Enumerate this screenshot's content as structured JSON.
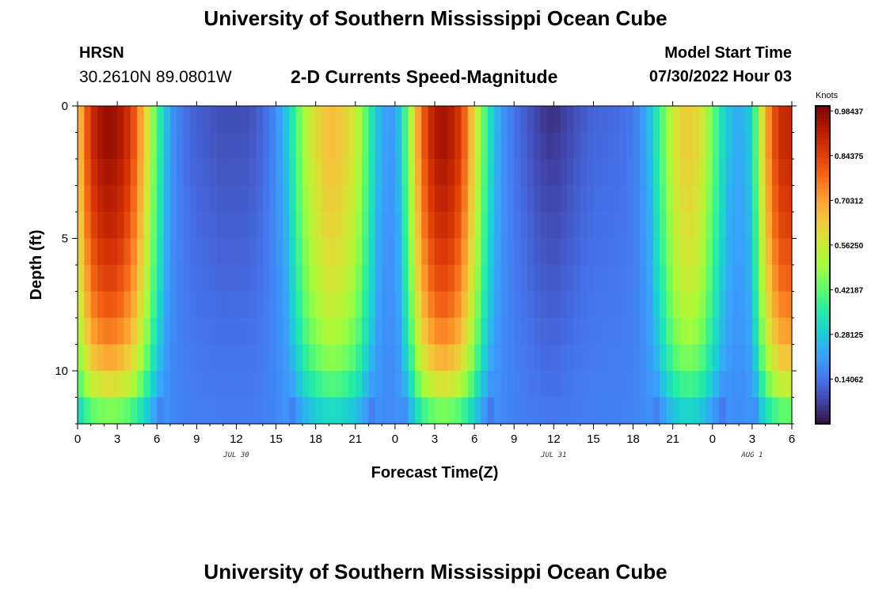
{
  "header": {
    "title": "University of Southern Mississippi Ocean Cube",
    "station": "HRSN",
    "coordinates": "30.2610N  89.0801W",
    "subtitle": "2-D Currents Speed-Magnitude",
    "model_start_label": "Model Start Time",
    "model_start_value": "07/30/2022 Hour 03"
  },
  "footer": {
    "title": "University of Southern Mississippi Ocean Cube"
  },
  "chart_data": {
    "type": "heatmap",
    "title": "2-D Currents Speed-Magnitude",
    "xlabel": "Forecast Time(Z)",
    "ylabel": "Depth (ft)",
    "x_ticks": [
      "0",
      "3",
      "6",
      "9",
      "12",
      "15",
      "18",
      "21",
      "0",
      "3",
      "6",
      "9",
      "12",
      "15",
      "18",
      "21",
      "0",
      "3",
      "6"
    ],
    "y_ticks": [
      "0",
      "5",
      "10"
    ],
    "y_tick_values": [
      0,
      5,
      10
    ],
    "ylim": [
      0,
      12
    ],
    "x_range_hours": [
      0,
      54
    ],
    "date_labels": [
      {
        "label": "JUL 30",
        "hour": 12
      },
      {
        "label": "JUL 31",
        "hour": 36
      },
      {
        "label": "AUG 1",
        "hour": 51
      }
    ],
    "colorbar": {
      "unit": "Knots",
      "ticks": [
        "0.98437",
        "0.84375",
        "0.70312",
        "0.56250",
        "0.42187",
        "0.28125",
        "0.14062"
      ],
      "tick_values": [
        0.98437,
        0.84375,
        0.70312,
        0.5625,
        0.42187,
        0.28125,
        0.14062
      ],
      "range": [
        0.0,
        1.0
      ]
    },
    "colors": {
      "scale": [
        "#30123b",
        "#4145ab",
        "#4675ed",
        "#39a2fc",
        "#1bcfd4",
        "#24eca6",
        "#61fc6c",
        "#a4fc3b",
        "#d1e834",
        "#f3c63a",
        "#fe9b2d",
        "#f36315",
        "#d93806",
        "#b11901",
        "#7a0402"
      ]
    },
    "depth_rows": 12,
    "depth_profile": [
      1.0,
      1.0,
      0.98,
      0.96,
      0.94,
      0.91,
      0.88,
      0.84,
      0.79,
      0.72,
      0.62,
      0.48
    ],
    "time_knots": [
      [
        0,
        0.62
      ],
      [
        1,
        0.88
      ],
      [
        2,
        0.96
      ],
      [
        3,
        0.95
      ],
      [
        4,
        0.86
      ],
      [
        5,
        0.66
      ],
      [
        6,
        0.4
      ],
      [
        7,
        0.2
      ],
      [
        8,
        0.14
      ],
      [
        9,
        0.11
      ],
      [
        11,
        0.085
      ],
      [
        13,
        0.09
      ],
      [
        14,
        0.12
      ],
      [
        15,
        0.18
      ],
      [
        16,
        0.3
      ],
      [
        17,
        0.48
      ],
      [
        18,
        0.6
      ],
      [
        19,
        0.66
      ],
      [
        20,
        0.64
      ],
      [
        21,
        0.56
      ],
      [
        22,
        0.38
      ],
      [
        23,
        0.22
      ],
      [
        24,
        0.2
      ],
      [
        25,
        0.45
      ],
      [
        26,
        0.78
      ],
      [
        27,
        0.93
      ],
      [
        28,
        0.94
      ],
      [
        29,
        0.85
      ],
      [
        30,
        0.6
      ],
      [
        31,
        0.35
      ],
      [
        32,
        0.2
      ],
      [
        33,
        0.14
      ],
      [
        34,
        0.1
      ],
      [
        35,
        0.06
      ],
      [
        36,
        0.045
      ],
      [
        37,
        0.07
      ],
      [
        38,
        0.1
      ],
      [
        39,
        0.12
      ],
      [
        41,
        0.13
      ],
      [
        42,
        0.15
      ],
      [
        43,
        0.22
      ],
      [
        44,
        0.38
      ],
      [
        45,
        0.56
      ],
      [
        46,
        0.64
      ],
      [
        47,
        0.6
      ],
      [
        48,
        0.44
      ],
      [
        49,
        0.28
      ],
      [
        50,
        0.22
      ],
      [
        51,
        0.3
      ],
      [
        52,
        0.68
      ],
      [
        53,
        0.88
      ],
      [
        54,
        0.9
      ]
    ]
  }
}
